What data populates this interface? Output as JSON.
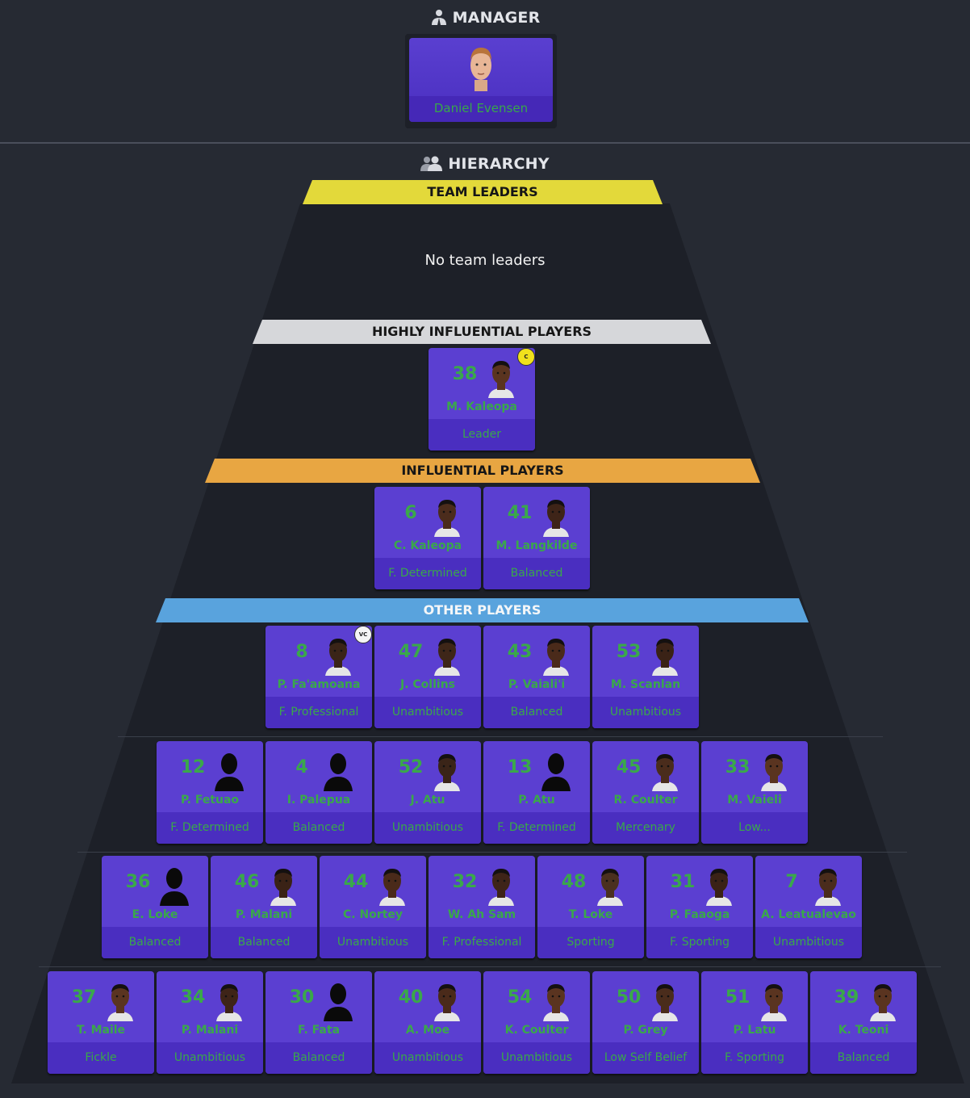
{
  "manager": {
    "title": "MANAGER",
    "name": "Daniel Evensen"
  },
  "hierarchy": {
    "title": "HIERARCHY",
    "tiers": {
      "team_leaders": {
        "label": "TEAM LEADERS",
        "empty_text": "No team leaders"
      },
      "highly_influential": {
        "label": "HIGHLY INFLUENTIAL PLAYERS"
      },
      "influential": {
        "label": "INFLUENTIAL PLAYERS"
      },
      "other": {
        "label": "OTHER PLAYERS"
      }
    }
  },
  "players": {
    "highly_influential": [
      {
        "number": "38",
        "name": "M. Kaleopa",
        "role": "Leader",
        "badge": "C",
        "skin": "#5a3420",
        "silhouette": false
      }
    ],
    "influential": [
      {
        "number": "6",
        "name": "C. Kaleopa",
        "role": "F. Determined",
        "skin": "#4b2c1c",
        "silhouette": false
      },
      {
        "number": "41",
        "name": "M. Langkilde",
        "role": "Balanced",
        "skin": "#3e2418",
        "silhouette": false
      }
    ],
    "other_rows": [
      [
        {
          "number": "8",
          "name": "P. Fa'amoana",
          "role": "F. Professional",
          "badge": "VC",
          "skin": "#3a2418",
          "silhouette": false
        },
        {
          "number": "47",
          "name": "J. Collins",
          "role": "Unambitious",
          "skin": "#3e2618",
          "silhouette": false
        },
        {
          "number": "43",
          "name": "P. Vaiali'i",
          "role": "Balanced",
          "skin": "#4a2a1a",
          "silhouette": false
        },
        {
          "number": "53",
          "name": "M. Scanlan",
          "role": "Unambitious",
          "skin": "#3a2216",
          "silhouette": false
        }
      ],
      [
        {
          "number": "12",
          "name": "P. Fetuao",
          "role": "F. Determined",
          "silhouette": true
        },
        {
          "number": "4",
          "name": "I. Palepua",
          "role": "Balanced",
          "silhouette": true
        },
        {
          "number": "52",
          "name": "J. Atu",
          "role": "Unambitious",
          "skin": "#3a2418",
          "silhouette": false
        },
        {
          "number": "13",
          "name": "P. Atu",
          "role": "F. Determined",
          "silhouette": true
        },
        {
          "number": "45",
          "name": "R. Coulter",
          "role": "Mercenary",
          "skin": "#4a2c1c",
          "silhouette": false
        },
        {
          "number": "33",
          "name": "M. Vaieli",
          "role": "Low...",
          "skin": "#5a3420",
          "silhouette": false
        }
      ],
      [
        {
          "number": "36",
          "name": "E. Loke",
          "role": "Balanced",
          "silhouette": true
        },
        {
          "number": "46",
          "name": "P. Malani",
          "role": "Balanced",
          "skin": "#3a2216",
          "silhouette": false
        },
        {
          "number": "44",
          "name": "C. Nortey",
          "role": "Unambitious",
          "skin": "#4a2a1a",
          "silhouette": false
        },
        {
          "number": "32",
          "name": "W. Ah Sam",
          "role": "F. Professional",
          "skin": "#3e2418",
          "silhouette": false
        },
        {
          "number": "48",
          "name": "T. Loke",
          "role": "Sporting",
          "skin": "#4a3020",
          "silhouette": false
        },
        {
          "number": "31",
          "name": "P. Faaoga",
          "role": "F. Sporting",
          "skin": "#3a2216",
          "silhouette": false
        },
        {
          "number": "7",
          "name": "A. Leatualevao",
          "role": "Unambitious",
          "skin": "#4a2c1c",
          "silhouette": false
        }
      ],
      [
        {
          "number": "37",
          "name": "T. Maile",
          "role": "Fickle",
          "skin": "#5a3420",
          "silhouette": false
        },
        {
          "number": "34",
          "name": "P. Malani",
          "role": "Unambitious",
          "skin": "#3e2418",
          "silhouette": false
        },
        {
          "number": "30",
          "name": "F. Fata",
          "role": "Balanced",
          "silhouette": true
        },
        {
          "number": "40",
          "name": "A. Moe",
          "role": "Unambitious",
          "skin": "#4a2a1a",
          "silhouette": false
        },
        {
          "number": "54",
          "name": "K. Coulter",
          "role": "Unambitious",
          "skin": "#5a3420",
          "silhouette": false
        },
        {
          "number": "50",
          "name": "P. Grey",
          "role": "Low Self Belief",
          "skin": "#4a2c1c",
          "silhouette": false
        },
        {
          "number": "51",
          "name": "P. Latu",
          "role": "F. Sporting",
          "skin": "#5a3420",
          "silhouette": false
        },
        {
          "number": "39",
          "name": "K. Teoni",
          "role": "Balanced",
          "skin": "#5a3420",
          "silhouette": false
        }
      ]
    ]
  },
  "colors": {
    "background": "#262a33",
    "pyramid_fill": "#1d2028",
    "card": "#5b3fd1",
    "card_footer": "#4a2ec0",
    "text_green": "#3aa84a",
    "team_leaders_band": "#e3d93a",
    "highly_influential_band": "#d6d7da",
    "influential_band": "#e8a642",
    "other_band": "#59a3dd"
  }
}
